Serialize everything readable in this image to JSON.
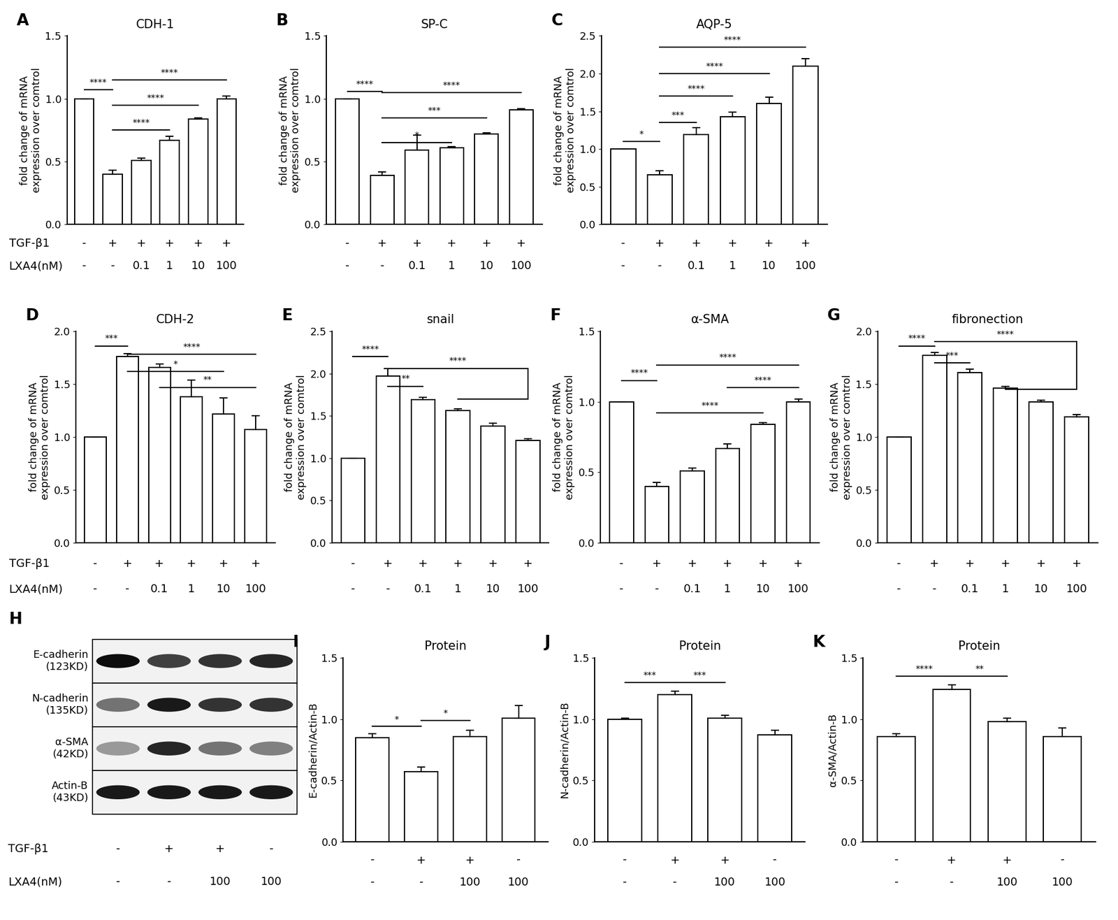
{
  "chart_data": [
    {
      "type": "bar",
      "panel": "A",
      "title": "CDH-1",
      "y_label": "fold change of mRNA\nexpression over comtrol",
      "values": [
        1.0,
        0.4,
        0.51,
        0.67,
        0.84,
        1.0
      ],
      "errors": [
        0,
        0.03,
        0.02,
        0.03,
        0.01,
        0.02
      ],
      "color": "#ffffff",
      "ylim": [
        0,
        1.5
      ],
      "yticks": [
        {
          "value": 0,
          "label": "0.0"
        },
        0.5,
        {
          "value": 1,
          "label": "1.0"
        },
        1.5
      ],
      "x_rows": [
        {
          "label": "TGF-β1",
          "values": [
            "-",
            "+",
            "+",
            "+",
            "+",
            "+"
          ]
        },
        {
          "label": "LXA4(nM)",
          "values": [
            "-",
            "-",
            "0.1",
            "1",
            "10",
            "100"
          ]
        }
      ],
      "annotations": [
        {
          "from": 0,
          "to": 1,
          "y": 1.07,
          "label": "****"
        },
        {
          "from": 1,
          "to": 3,
          "y": 0.75,
          "label": "****"
        },
        {
          "from": 1,
          "to": 4,
          "y": 0.95,
          "label": "****"
        },
        {
          "from": 1,
          "to": 5,
          "y": 1.15,
          "label": "****"
        }
      ]
    },
    {
      "type": "bar",
      "panel": "B",
      "title": "SP-C",
      "y_label": "fold change of mRNA\nexpression over comtrol",
      "values": [
        1.0,
        0.39,
        0.59,
        0.61,
        0.72,
        0.91
      ],
      "errors": [
        0,
        0.03,
        0.12,
        0.01,
        0.01,
        0.01
      ],
      "color": "#ffffff",
      "ylim": [
        0,
        1.5
      ],
      "yticks": [
        {
          "value": 0,
          "label": "0.0"
        },
        0.5,
        {
          "value": 1,
          "label": "1.0"
        },
        1.5
      ],
      "x_rows": [
        {
          "label": null,
          "values": [
            "-",
            "+",
            "+",
            "+",
            "+",
            "+"
          ]
        },
        {
          "label": null,
          "values": [
            "-",
            "-",
            "0.1",
            "1",
            "10",
            "100"
          ]
        }
      ],
      "annotations": [
        {
          "from": 0,
          "to": 1,
          "y": 1.06,
          "label": "****"
        },
        {
          "from": 1,
          "to": 3,
          "y": 0.65,
          "label": "*"
        },
        {
          "from": 1,
          "to": 4,
          "y": 0.85,
          "label": "***"
        },
        {
          "from": 1,
          "to": 5,
          "y": 1.05,
          "label": "****"
        }
      ]
    },
    {
      "type": "bar",
      "panel": "C",
      "title": "AQP-5",
      "y_label": "fold change of mRNA\nexpression over comtrol",
      "values": [
        1.0,
        0.66,
        1.19,
        1.43,
        1.6,
        2.1
      ],
      "errors": [
        0,
        0.05,
        0.09,
        0.06,
        0.09,
        0.1
      ],
      "color": "#ffffff",
      "ylim": [
        0,
        2.5
      ],
      "yticks": [
        {
          "value": 0,
          "label": "0.0"
        },
        0.5,
        {
          "value": 1,
          "label": "1.0"
        },
        1.5,
        {
          "value": 2,
          "label": "2.0"
        },
        2.5
      ],
      "x_rows": [
        {
          "label": null,
          "values": [
            "-",
            "+",
            "+",
            "+",
            "+",
            "+"
          ]
        },
        {
          "label": null,
          "values": [
            "-",
            "-",
            "0.1",
            "1",
            "10",
            "100"
          ]
        }
      ],
      "annotations": [
        {
          "from": 0,
          "to": 1,
          "y": 1.1,
          "label": "*"
        },
        {
          "from": 1,
          "to": 2,
          "y": 1.35,
          "label": "***"
        },
        {
          "from": 1,
          "to": 3,
          "y": 1.7,
          "label": "****"
        },
        {
          "from": 1,
          "to": 4,
          "y": 2.0,
          "label": "****"
        },
        {
          "from": 1,
          "to": 5,
          "y": 2.35,
          "label": "****"
        }
      ]
    },
    {
      "type": "bar",
      "panel": "D",
      "title": "CDH-2",
      "y_label": "fold change of mRNA\nexpression over comtrol",
      "values": [
        1.0,
        1.76,
        1.66,
        1.38,
        1.22,
        1.07
      ],
      "errors": [
        0,
        0.03,
        0.03,
        0.16,
        0.15,
        0.13
      ],
      "color": "#ffffff",
      "ylim": [
        0,
        2.0
      ],
      "yticks": [
        {
          "value": 0,
          "label": "0.0"
        },
        0.5,
        {
          "value": 1,
          "label": "1.0"
        },
        1.5,
        {
          "value": 2,
          "label": "2.0"
        }
      ],
      "x_rows": [
        {
          "label": "TGF-β1",
          "values": [
            "-",
            "+",
            "+",
            "+",
            "+",
            "+"
          ]
        },
        {
          "label": "LXA4(nM)",
          "values": [
            "-",
            "-",
            "0.1",
            "1",
            "10",
            "100"
          ]
        }
      ],
      "annotations": [
        {
          "from": 0,
          "to": 1,
          "y": 1.86,
          "label": "***"
        },
        {
          "from": 1,
          "to": 5,
          "y": 1.78,
          "label": "****"
        },
        {
          "from": 1,
          "to": 4,
          "y": 1.62,
          "label": "*"
        },
        {
          "from": 2,
          "to": 5,
          "y": 1.47,
          "label": "**"
        }
      ]
    },
    {
      "type": "bar",
      "panel": "E",
      "title": "snail",
      "y_label": "fold change of mRNA\nexpression over comtrol",
      "values": [
        1.0,
        1.97,
        1.69,
        1.56,
        1.38,
        1.21
      ],
      "errors": [
        0,
        0.09,
        0.03,
        0.02,
        0.03,
        0.02
      ],
      "color": "#ffffff",
      "ylim": [
        0,
        2.5
      ],
      "yticks": [
        {
          "value": 0,
          "label": "0.0"
        },
        0.5,
        {
          "value": 1,
          "label": "1.0"
        },
        1.5,
        {
          "value": 2,
          "label": "2.0"
        },
        2.5
      ],
      "x_rows": [
        {
          "label": null,
          "values": [
            "-",
            "+",
            "+",
            "+",
            "+",
            "+"
          ]
        },
        {
          "label": null,
          "values": [
            "-",
            "-",
            "0.1",
            "1",
            "10",
            "100"
          ]
        }
      ],
      "annotations": [
        {
          "from": 0,
          "to": 1,
          "y": 2.2,
          "label": "****"
        },
        {
          "from": 1,
          "to": 2,
          "y": 1.85,
          "label": "**"
        },
        {
          "from": 1,
          "to": 5,
          "y": 2.06,
          "label": "****",
          "group": [
            3,
            5
          ],
          "group_y": 1.7
        }
      ]
    },
    {
      "type": "bar",
      "panel": "F",
      "title": "α-SMA",
      "y_label": "fold change of mRNA\nexpression over comtrol",
      "values": [
        1.0,
        0.4,
        0.51,
        0.67,
        0.84,
        1.0
      ],
      "errors": [
        0,
        0.03,
        0.02,
        0.03,
        0.01,
        0.02
      ],
      "color": "#ffffff",
      "ylim": [
        0,
        1.5
      ],
      "yticks": [
        {
          "value": 0,
          "label": "0.0"
        },
        0.5,
        {
          "value": 1,
          "label": "1.0"
        },
        1.5
      ],
      "x_rows": [
        {
          "label": null,
          "values": [
            "-",
            "+",
            "+",
            "+",
            "+",
            "+"
          ]
        },
        {
          "label": null,
          "values": [
            "-",
            "-",
            "0.1",
            "1",
            "10",
            "100"
          ]
        }
      ],
      "annotations": [
        {
          "from": 0,
          "to": 1,
          "y": 1.15,
          "label": "****"
        },
        {
          "from": 1,
          "to": 5,
          "y": 1.26,
          "label": "****"
        },
        {
          "from": 1,
          "to": 4,
          "y": 0.92,
          "label": "****"
        },
        {
          "from": 3,
          "to": 5,
          "y": 1.1,
          "label": "****"
        }
      ]
    },
    {
      "type": "bar",
      "panel": "G",
      "title": "fibronection",
      "y_label": "fold change of mRNA\nexpression over comtrol",
      "values": [
        1.0,
        1.77,
        1.61,
        1.46,
        1.33,
        1.19
      ],
      "errors": [
        0,
        0.03,
        0.03,
        0.02,
        0.02,
        0.02
      ],
      "color": "#ffffff",
      "ylim": [
        0,
        2.0
      ],
      "yticks": [
        {
          "value": 0,
          "label": "0.0"
        },
        0.5,
        {
          "value": 1,
          "label": "1.0"
        },
        1.5,
        {
          "value": 2,
          "label": "2.0"
        }
      ],
      "x_rows": [
        {
          "label": null,
          "values": [
            "-",
            "+",
            "+",
            "+",
            "+",
            "+"
          ]
        },
        {
          "label": null,
          "values": [
            "-",
            "-",
            "0.1",
            "1",
            "10",
            "100"
          ]
        }
      ],
      "annotations": [
        {
          "from": 0,
          "to": 1,
          "y": 1.86,
          "label": "****"
        },
        {
          "from": 1,
          "to": 2,
          "y": 1.7,
          "label": "***"
        },
        {
          "from": 1,
          "to": 5,
          "y": 1.9,
          "label": "****",
          "group": [
            3,
            5
          ],
          "group_y": 1.45
        }
      ]
    },
    {
      "type": "blot",
      "panel": "H",
      "bands": [
        {
          "name": "E-cadherin",
          "size": "(123KD)",
          "intensity": [
            0.95,
            0.75,
            0.8,
            0.85
          ]
        },
        {
          "name": "N-cadherin",
          "size": "(135KD)",
          "intensity": [
            0.55,
            0.9,
            0.8,
            0.8
          ]
        },
        {
          "name": "α-SMA",
          "size": "(42KD)",
          "intensity": [
            0.4,
            0.85,
            0.55,
            0.5
          ]
        },
        {
          "name": "Actin-B",
          "size": "(43KD)",
          "intensity": [
            0.9,
            0.9,
            0.9,
            0.9
          ]
        }
      ],
      "x_rows": [
        {
          "label": "TGF-β1",
          "values": [
            "-",
            "+",
            "+",
            "-"
          ]
        },
        {
          "label": "LXA4(nM)",
          "values": [
            "-",
            "-",
            "100",
            "100"
          ]
        }
      ]
    },
    {
      "type": "bar",
      "panel": "I",
      "title": "Protein",
      "y_label": "E-cadherin/Actin-B",
      "values": [
        0.85,
        0.57,
        0.86,
        1.01
      ],
      "errors": [
        0.03,
        0.04,
        0.05,
        0.1
      ],
      "color": "#ffffff",
      "ylim": [
        0,
        1.5
      ],
      "yticks": [
        {
          "value": 0,
          "label": "0.0"
        },
        0.5,
        {
          "value": 1,
          "label": "1.0"
        },
        1.5
      ],
      "x_rows": [
        {
          "label": null,
          "values": [
            "-",
            "+",
            "+",
            "-"
          ]
        },
        {
          "label": null,
          "values": [
            "-",
            "-",
            "100",
            "100"
          ]
        }
      ],
      "annotations": [
        {
          "from": 0,
          "to": 1,
          "y": 0.94,
          "label": "*"
        },
        {
          "from": 1,
          "to": 2,
          "y": 0.99,
          "label": "*"
        }
      ]
    },
    {
      "type": "bar",
      "panel": "J",
      "title": "Protein",
      "y_label": "N-cadherin/Actin-B",
      "values": [
        1.0,
        1.2,
        1.01,
        0.87
      ],
      "errors": [
        0.01,
        0.03,
        0.02,
        0.04
      ],
      "color": "#ffffff",
      "ylim": [
        0,
        1.5
      ],
      "yticks": [
        {
          "value": 0,
          "label": "0.0"
        },
        0.5,
        {
          "value": 1,
          "label": "1.0"
        },
        1.5
      ],
      "x_rows": [
        {
          "label": null,
          "values": [
            "-",
            "+",
            "+",
            "-"
          ]
        },
        {
          "label": null,
          "values": [
            "-",
            "-",
            "100",
            "100"
          ]
        }
      ],
      "annotations": [
        {
          "from": 0,
          "to": 1,
          "y": 1.3,
          "label": "***"
        },
        {
          "from": 1,
          "to": 2,
          "y": 1.3,
          "label": "***"
        }
      ]
    },
    {
      "type": "bar",
      "panel": "K",
      "title": "Protein",
      "y_label": "α-SMA/Actin-B",
      "values": [
        0.86,
        1.24,
        0.98,
        0.86
      ],
      "errors": [
        0.02,
        0.04,
        0.03,
        0.07
      ],
      "color": "#ffffff",
      "ylim": [
        0,
        1.5
      ],
      "yticks": [
        {
          "value": 0,
          "label": "0.0"
        },
        0.5,
        {
          "value": 1,
          "label": "1.0"
        },
        1.5
      ],
      "x_rows": [
        {
          "label": null,
          "values": [
            "-",
            "+",
            "+",
            "-"
          ]
        },
        {
          "label": null,
          "values": [
            "-",
            "-",
            "100",
            "100"
          ]
        }
      ],
      "annotations": [
        {
          "from": 0,
          "to": 1,
          "y": 1.35,
          "label": "****"
        },
        {
          "from": 1,
          "to": 2,
          "y": 1.35,
          "label": "**"
        }
      ]
    }
  ]
}
